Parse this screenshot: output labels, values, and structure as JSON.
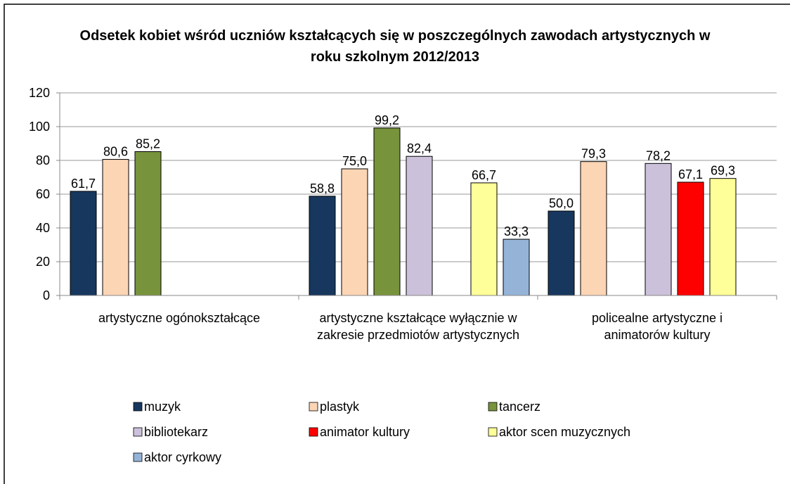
{
  "chart_data": {
    "type": "bar",
    "title": "Odsetek kobiet wśród uczniów kształcących się w poszczególnych zawodach artystycznych w roku szkolnym 2012/2013",
    "categories": [
      "artystyczne ogónokształcące",
      "artystyczne kształcące wyłącznie w zakresie przedmiotów artystycznych",
      "policealne artystyczne i animatorów kultury"
    ],
    "series": [
      {
        "name": "muzyk",
        "color": "#17375e",
        "values": [
          61.7,
          58.8,
          50.0
        ],
        "value_labels": [
          "61,7",
          "58,8",
          "50,0"
        ]
      },
      {
        "name": "plastyk",
        "color": "#fcd5b5",
        "values": [
          80.6,
          75.0,
          79.3
        ],
        "value_labels": [
          "80,6",
          "75,0",
          "79,3"
        ]
      },
      {
        "name": "tancerz",
        "color": "#77933c",
        "values": [
          85.2,
          99.2,
          null
        ],
        "value_labels": [
          "85,2",
          "99,2",
          null
        ]
      },
      {
        "name": "bibliotekarz",
        "color": "#ccc1da",
        "values": [
          null,
          82.4,
          78.2
        ],
        "value_labels": [
          null,
          "82,4",
          "78,2"
        ]
      },
      {
        "name": "animator kultury",
        "color": "#ff0000",
        "values": [
          null,
          null,
          67.1
        ],
        "value_labels": [
          null,
          null,
          "67,1"
        ]
      },
      {
        "name": "aktor scen muzycznych",
        "color": "#ffff99",
        "values": [
          null,
          66.7,
          69.3
        ],
        "value_labels": [
          null,
          "66,7",
          "69,3"
        ]
      },
      {
        "name": "aktor cyrkowy",
        "color": "#95b3d7",
        "values": [
          null,
          33.3,
          null
        ],
        "value_labels": [
          null,
          "33,3",
          null
        ]
      }
    ],
    "ylim": [
      0,
      120
    ],
    "yticks": [
      0,
      20,
      40,
      60,
      80,
      100,
      120
    ],
    "grid": true,
    "legend": "bottom"
  }
}
